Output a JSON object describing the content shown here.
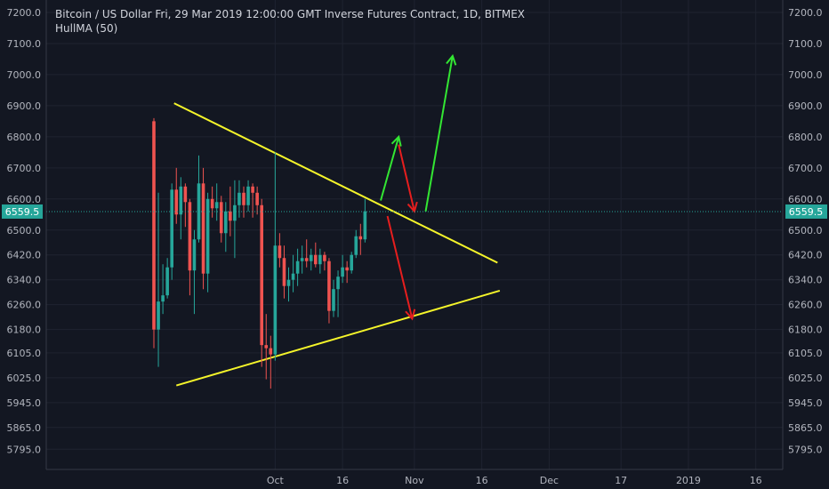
{
  "legend": {
    "line1": "Bitcoin / US Dollar Fri, 29 Mar 2019 12:00:00 GMT Inverse Futures Contract, 1D, BITMEX",
    "line2": "HullMA (50)"
  },
  "colors": {
    "background": "#131722",
    "grid": "#1f2330",
    "up": "#26a69a",
    "down": "#ef5350",
    "trendline": "#f5f52a",
    "arrow_up": "#33e633",
    "arrow_down": "#e61e1e",
    "price_line": "#26a69a",
    "axis_text": "#b2b5be"
  },
  "chart_data": {
    "type": "candlestick",
    "ylim": [
      5730,
      7240
    ],
    "yticks": [
      5795,
      5865,
      5945,
      6025,
      6105,
      6180,
      6260,
      6340,
      6420,
      6500,
      6600,
      6700,
      6800,
      6900,
      7000,
      7100,
      7200
    ],
    "ytick_labels": [
      "5795.0",
      "5865.0",
      "5945.0",
      "6025.0",
      "6105.0",
      "6180.0",
      "6260.0",
      "6340.0",
      "6420.0",
      "6500.0",
      "6600.0",
      "6700.0",
      "6800.0",
      "6900.0",
      "7000.0",
      "7100.0",
      "7200.0"
    ],
    "xticks": [
      {
        "label": "Oct",
        "day": 27
      },
      {
        "label": "16",
        "day": 42
      },
      {
        "label": "Nov",
        "day": 58
      },
      {
        "label": "16",
        "day": 73
      },
      {
        "label": "Dec",
        "day": 88
      },
      {
        "label": "17",
        "day": 104
      },
      {
        "label": "2019",
        "day": 119
      },
      {
        "label": "16",
        "day": 134
      }
    ],
    "current_price": 6559.5,
    "current_price_label": "6559.5",
    "candles": [
      [
        6850,
        6860,
        6120,
        6180
      ],
      [
        6180,
        6620,
        6060,
        6270
      ],
      [
        6270,
        6390,
        6230,
        6290
      ],
      [
        6290,
        6410,
        6280,
        6380
      ],
      [
        6380,
        6650,
        6340,
        6630
      ],
      [
        6630,
        6700,
        6520,
        6550
      ],
      [
        6550,
        6670,
        6470,
        6640
      ],
      [
        6640,
        6650,
        6510,
        6590
      ],
      [
        6590,
        6600,
        6290,
        6370
      ],
      [
        6370,
        6500,
        6230,
        6470
      ],
      [
        6470,
        6740,
        6460,
        6650
      ],
      [
        6650,
        6700,
        6310,
        6360
      ],
      [
        6360,
        6620,
        6300,
        6600
      ],
      [
        6600,
        6640,
        6540,
        6570
      ],
      [
        6570,
        6650,
        6530,
        6590
      ],
      [
        6590,
        6610,
        6460,
        6490
      ],
      [
        6490,
        6590,
        6430,
        6560
      ],
      [
        6560,
        6640,
        6480,
        6530
      ],
      [
        6530,
        6660,
        6410,
        6580
      ],
      [
        6580,
        6660,
        6540,
        6620
      ],
      [
        6620,
        6640,
        6540,
        6580
      ],
      [
        6580,
        6660,
        6560,
        6640
      ],
      [
        6640,
        6650,
        6540,
        6620
      ],
      [
        6620,
        6640,
        6550,
        6580
      ],
      [
        6580,
        6600,
        6060,
        6130
      ],
      [
        6130,
        6230,
        6020,
        6120
      ],
      [
        6120,
        6160,
        5990,
        6100
      ],
      [
        6100,
        6750,
        6080,
        6450
      ],
      [
        6450,
        6490,
        6380,
        6410
      ],
      [
        6410,
        6450,
        6280,
        6320
      ],
      [
        6320,
        6380,
        6270,
        6340
      ],
      [
        6340,
        6420,
        6300,
        6360
      ],
      [
        6360,
        6440,
        6320,
        6400
      ],
      [
        6400,
        6450,
        6360,
        6410
      ],
      [
        6410,
        6470,
        6380,
        6400
      ],
      [
        6400,
        6440,
        6370,
        6420
      ],
      [
        6420,
        6460,
        6380,
        6390
      ],
      [
        6390,
        6440,
        6360,
        6420
      ],
      [
        6420,
        6430,
        6370,
        6400
      ],
      [
        6400,
        6410,
        6200,
        6240
      ],
      [
        6240,
        6340,
        6220,
        6310
      ],
      [
        6310,
        6370,
        6220,
        6350
      ],
      [
        6350,
        6420,
        6330,
        6380
      ],
      [
        6380,
        6400,
        6330,
        6370
      ],
      [
        6370,
        6430,
        6360,
        6420
      ],
      [
        6420,
        6500,
        6410,
        6480
      ],
      [
        6480,
        6520,
        6420,
        6470
      ],
      [
        6470,
        6600,
        6460,
        6560
      ]
    ],
    "trendlines": [
      {
        "from": [
          4.5,
          6908
        ],
        "to": [
          76.5,
          6395
        ]
      },
      {
        "from": [
          5,
          6000
        ],
        "to": [
          77,
          6305
        ]
      }
    ],
    "arrows": [
      {
        "kind": "up",
        "from": [
          50.5,
          6595
        ],
        "to": [
          54.5,
          6800
        ]
      },
      {
        "kind": "down",
        "from": [
          54.5,
          6775
        ],
        "to": [
          58,
          6560
        ]
      },
      {
        "kind": "up",
        "from": [
          60.5,
          6560
        ],
        "to": [
          66.5,
          7060
        ]
      },
      {
        "kind": "down",
        "from": [
          52,
          6545
        ],
        "to": [
          57.5,
          6215
        ]
      }
    ]
  }
}
